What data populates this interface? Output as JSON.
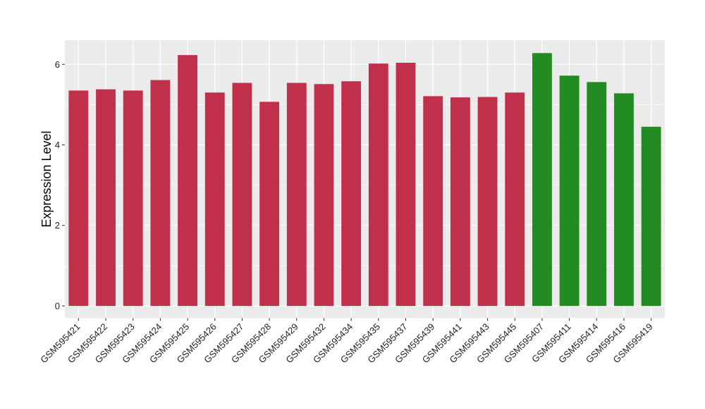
{
  "chart_data": {
    "type": "bar",
    "title": "",
    "xlabel": "",
    "ylabel": "Expression Level",
    "ylim": [
      -0.3,
      6.6
    ],
    "yticks": [
      0,
      2,
      4,
      6
    ],
    "grid": true,
    "background_color": "#EBEBEB",
    "categories": [
      "GSM595421",
      "GSM595422",
      "GSM595423",
      "GSM595424",
      "GSM595425",
      "GSM595426",
      "GSM595427",
      "GSM595428",
      "GSM595429",
      "GSM595432",
      "GSM595434",
      "GSM595435",
      "GSM595437",
      "GSM595439",
      "GSM595441",
      "GSM595443",
      "GSM595445",
      "GSM595407",
      "GSM595411",
      "GSM595414",
      "GSM595416",
      "GSM595419"
    ],
    "values": [
      5.35,
      5.38,
      5.35,
      5.61,
      6.23,
      5.3,
      5.54,
      5.07,
      5.54,
      5.51,
      5.58,
      6.02,
      6.04,
      5.21,
      5.18,
      5.19,
      5.3,
      6.28,
      5.72,
      5.56,
      5.28,
      4.45
    ],
    "colors": [
      "#C0304A",
      "#C0304A",
      "#C0304A",
      "#C0304A",
      "#C0304A",
      "#C0304A",
      "#C0304A",
      "#C0304A",
      "#C0304A",
      "#C0304A",
      "#C0304A",
      "#C0304A",
      "#C0304A",
      "#C0304A",
      "#C0304A",
      "#C0304A",
      "#C0304A",
      "#228B22",
      "#228B22",
      "#228B22",
      "#228B22",
      "#228B22"
    ]
  }
}
